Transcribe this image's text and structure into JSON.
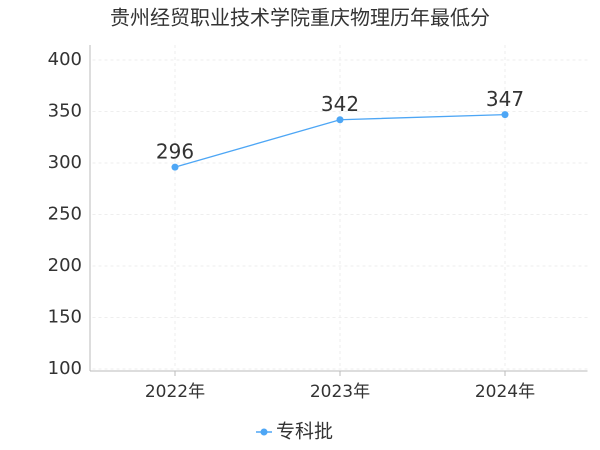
{
  "chart_data": {
    "type": "line",
    "title": "贵州经贸职业技术学院重庆物理历年最低分",
    "categories": [
      "2022年",
      "2023年",
      "2024年"
    ],
    "series": [
      {
        "name": "专科批",
        "color": "#4da6f5",
        "values": [
          296,
          342,
          347
        ]
      }
    ],
    "ylim": [
      100,
      400
    ],
    "yticks": [
      100,
      150,
      200,
      250,
      300,
      350,
      400
    ],
    "grid": true,
    "legend": "bottom"
  }
}
